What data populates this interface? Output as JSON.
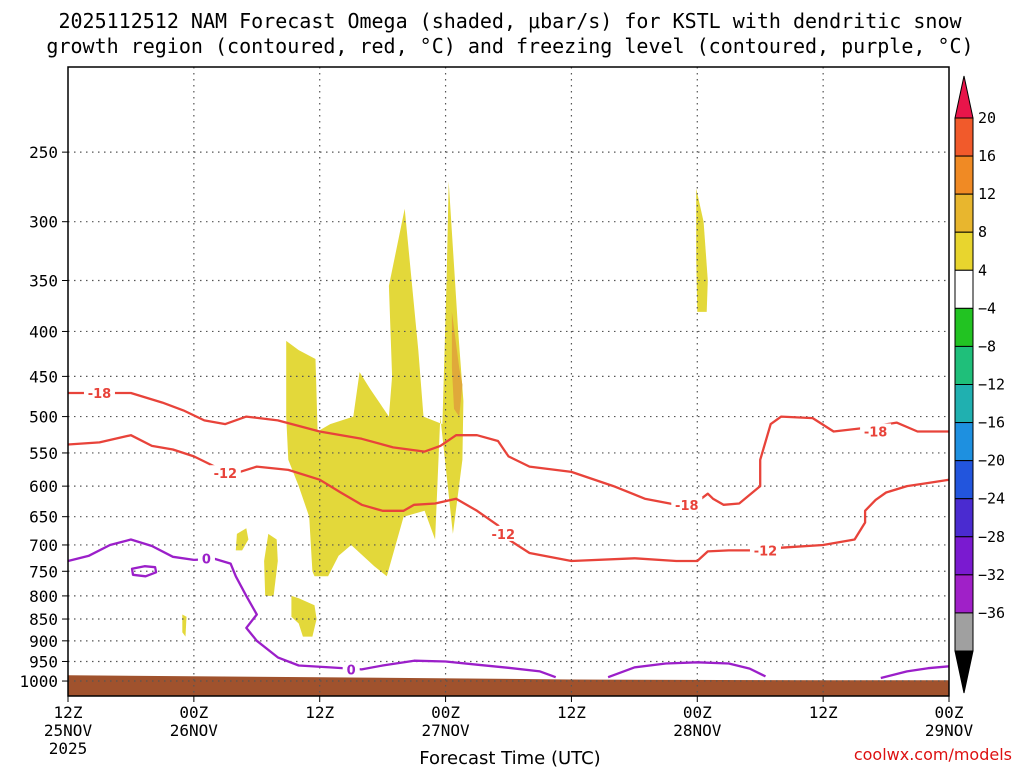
{
  "chart_data": {
    "type": "contour",
    "title_line1": "2025112512 NAM Forecast Omega (shaded, μbar/s) for KSTL with dendritic snow",
    "title_line2": "growth region (contoured, red, °C) and freezing level (contoured, purple, °C)",
    "xlabel": "Forecast Time (UTC)",
    "ylabel": "",
    "credit": "coolwx.com/models",
    "x_hours_range": [
      0,
      84
    ],
    "y_pressure_range": [
      1040,
      200
    ],
    "pressure_levels": [
      250,
      300,
      350,
      400,
      450,
      500,
      550,
      600,
      650,
      700,
      750,
      800,
      850,
      900,
      950,
      1000
    ],
    "x_ticks": [
      {
        "hour": 0,
        "time": "12Z",
        "date": "25NOV",
        "year": "2025"
      },
      {
        "hour": 12,
        "time": "00Z",
        "date": "26NOV",
        "year": ""
      },
      {
        "hour": 24,
        "time": "12Z",
        "date": "",
        "year": ""
      },
      {
        "hour": 36,
        "time": "00Z",
        "date": "27NOV",
        "year": ""
      },
      {
        "hour": 48,
        "time": "12Z",
        "date": "",
        "year": ""
      },
      {
        "hour": 60,
        "time": "00Z",
        "date": "28NOV",
        "year": ""
      },
      {
        "hour": 72,
        "time": "12Z",
        "date": "",
        "year": ""
      },
      {
        "hour": 84,
        "time": "00Z",
        "date": "29NOV",
        "year": ""
      }
    ],
    "colorbar": {
      "levels": [
        "20",
        "16",
        "12",
        "8",
        "4",
        "-4",
        "-8",
        "-12",
        "-16",
        "-20",
        "-24",
        "-28",
        "-32",
        "-36"
      ],
      "colors": [
        "#e8154a",
        "#f15a2b",
        "#f08a24",
        "#e8b62e",
        "#e8d52e",
        "#ffffff",
        "#22c322",
        "#1fbf7a",
        "#20b0b0",
        "#1e90e0",
        "#2255dd",
        "#4a2bd0",
        "#7a1ad0",
        "#a020c8",
        "#a0a0a0",
        "#000000"
      ]
    },
    "series": [
      {
        "name": "omega +4 to +8 (yellow)",
        "color": "#e3d83a",
        "polygons": [
          [
            [
              20.8,
              410
            ],
            [
              22.0,
              420
            ],
            [
              23.6,
              430
            ],
            [
              23.8,
              520
            ],
            [
              25.0,
              510
            ],
            [
              27.2,
              500
            ],
            [
              27.8,
              445
            ],
            [
              28.8,
              465
            ],
            [
              30.6,
              500
            ],
            [
              30.9,
              450
            ],
            [
              30.6,
              355
            ],
            [
              32.1,
              290
            ],
            [
              33.4,
              420
            ],
            [
              33.9,
              500
            ],
            [
              35.7,
              510
            ],
            [
              36.1,
              350
            ],
            [
              36.3,
              270
            ],
            [
              37.2,
              400
            ],
            [
              37.7,
              480
            ],
            [
              37.6,
              560
            ],
            [
              36.7,
              680
            ],
            [
              35.5,
              500
            ],
            [
              35.0,
              690
            ],
            [
              34.0,
              640
            ],
            [
              32.0,
              650
            ],
            [
              30.4,
              760
            ],
            [
              29.2,
              740
            ],
            [
              27.0,
              700
            ],
            [
              25.8,
              720
            ],
            [
              24.8,
              760
            ],
            [
              23.5,
              760
            ],
            [
              23.3,
              750
            ],
            [
              23.0,
              650
            ],
            [
              22.0,
              600
            ],
            [
              21.0,
              560
            ],
            [
              20.8,
              500
            ]
          ],
          [
            [
              59.9,
              275
            ],
            [
              60.6,
              300
            ],
            [
              61.0,
              350
            ],
            [
              60.9,
              380
            ],
            [
              60.0,
              380
            ],
            [
              59.9,
              330
            ]
          ],
          [
            [
              21.3,
              800
            ],
            [
              22.0,
              805
            ],
            [
              23.5,
              820
            ],
            [
              23.7,
              850
            ],
            [
              23.3,
              890
            ],
            [
              22.4,
              890
            ],
            [
              22.0,
              860
            ],
            [
              21.3,
              845
            ]
          ],
          [
            [
              19.1,
              680
            ],
            [
              19.9,
              690
            ],
            [
              20.0,
              730
            ],
            [
              19.6,
              800
            ],
            [
              18.8,
              800
            ],
            [
              18.7,
              730
            ]
          ],
          [
            [
              16.1,
              680
            ],
            [
              17.0,
              670
            ],
            [
              17.2,
              690
            ],
            [
              16.6,
              710
            ],
            [
              16.0,
              710
            ]
          ],
          [
            [
              10.9,
              840
            ],
            [
              11.3,
              845
            ],
            [
              11.2,
              890
            ],
            [
              10.9,
              880
            ]
          ]
        ]
      },
      {
        "name": "omega +8 to +12 (orange)",
        "color": "#e0a93a",
        "polygons": [
          [
            [
              36.6,
              380
            ],
            [
              37.3,
              440
            ],
            [
              37.6,
              460
            ],
            [
              37.3,
              500
            ],
            [
              36.8,
              490
            ],
            [
              36.6,
              440
            ]
          ]
        ]
      },
      {
        "name": "terrain (below ground)",
        "color": "#a0522d",
        "polygons": [
          [
            [
              0,
              985
            ],
            [
              24,
              990
            ],
            [
              48,
              996
            ],
            [
              72,
              998
            ],
            [
              84,
              998
            ],
            [
              84,
              1040
            ],
            [
              0,
              1040
            ]
          ]
        ]
      },
      {
        "name": "-18 °C isotherm (red)",
        "color": "#e8433a",
        "label": "-18",
        "label_points": [
          [
            3.0,
            470
          ],
          [
            59.0,
            630
          ],
          [
            77.0,
            520
          ]
        ],
        "points": [
          [
            0,
            470
          ],
          [
            3,
            470
          ],
          [
            6,
            470
          ],
          [
            9,
            482
          ],
          [
            11,
            492
          ],
          [
            13,
            505
          ],
          [
            15,
            510
          ],
          [
            17,
            500
          ],
          [
            20,
            505
          ],
          [
            24,
            520
          ],
          [
            28,
            530
          ],
          [
            31,
            542
          ],
          [
            34,
            548
          ],
          [
            35.5,
            540
          ],
          [
            37,
            525
          ],
          [
            39,
            525
          ],
          [
            41,
            533
          ],
          [
            42,
            555
          ],
          [
            44,
            570
          ],
          [
            48,
            578
          ],
          [
            52,
            600
          ],
          [
            55,
            620
          ],
          [
            58,
            630
          ],
          [
            60,
            625
          ],
          [
            61,
            612
          ],
          [
            61.5,
            620
          ],
          [
            62.5,
            630
          ],
          [
            64,
            628
          ],
          [
            66,
            600
          ],
          [
            66,
            560
          ],
          [
            67,
            510
          ],
          [
            68,
            500
          ],
          [
            71,
            502
          ],
          [
            73,
            520
          ],
          [
            76,
            515
          ],
          [
            79,
            508
          ],
          [
            81,
            520
          ],
          [
            84,
            520
          ]
        ]
      },
      {
        "name": "-12 °C isotherm (red)",
        "color": "#e8433a",
        "label": "-12",
        "label_points": [
          [
            15.0,
            580
          ],
          [
            41.5,
            680
          ],
          [
            66.5,
            710
          ]
        ],
        "points": [
          [
            0,
            538
          ],
          [
            3,
            535
          ],
          [
            6,
            525
          ],
          [
            8,
            540
          ],
          [
            10,
            545
          ],
          [
            12,
            555
          ],
          [
            14,
            570
          ],
          [
            16,
            580
          ],
          [
            18,
            570
          ],
          [
            21,
            575
          ],
          [
            24,
            590
          ],
          [
            26,
            610
          ],
          [
            28,
            630
          ],
          [
            30,
            640
          ],
          [
            32,
            640
          ],
          [
            33,
            630
          ],
          [
            35,
            628
          ],
          [
            37,
            620
          ],
          [
            39,
            640
          ],
          [
            41,
            665
          ],
          [
            42,
            690
          ],
          [
            44,
            715
          ],
          [
            48,
            730
          ],
          [
            54,
            725
          ],
          [
            58,
            730
          ],
          [
            60,
            730
          ],
          [
            61,
            712
          ],
          [
            63,
            710
          ],
          [
            66,
            710
          ],
          [
            68,
            705
          ],
          [
            72,
            700
          ],
          [
            75,
            690
          ],
          [
            76,
            660
          ],
          [
            76,
            640
          ],
          [
            77,
            622
          ],
          [
            78,
            610
          ],
          [
            80,
            600
          ],
          [
            82,
            595
          ],
          [
            84,
            590
          ]
        ]
      },
      {
        "name": "0 °C freezing level (purple)",
        "color": "#9b1fc9",
        "label": "0",
        "label_points": [
          [
            13.2,
            725
          ],
          [
            27.0,
            970
          ]
        ],
        "points": [
          [
            0,
            730
          ],
          [
            2,
            720
          ],
          [
            4,
            700
          ],
          [
            6,
            690
          ],
          [
            8,
            702
          ],
          [
            10,
            722
          ],
          [
            12,
            728
          ],
          [
            14,
            726
          ],
          [
            15.5,
            735
          ],
          [
            16,
            760
          ],
          [
            17,
            800
          ],
          [
            18,
            840
          ],
          [
            17,
            870
          ],
          [
            18,
            900
          ],
          [
            20,
            940
          ],
          [
            22,
            960
          ],
          [
            25,
            965
          ],
          [
            28,
            970
          ],
          [
            30,
            960
          ],
          [
            33,
            948
          ],
          [
            36,
            950
          ],
          [
            39,
            958
          ],
          [
            42,
            966
          ],
          [
            45,
            975
          ],
          [
            46.5,
            990
          ]
        ]
      },
      {
        "name": "0 °C loop small (purple)",
        "color": "#9b1fc9",
        "closed": true,
        "points": [
          [
            6.1,
            745
          ],
          [
            7.3,
            740
          ],
          [
            8.3,
            742
          ],
          [
            8.4,
            752
          ],
          [
            7.4,
            760
          ],
          [
            6.2,
            757
          ]
        ]
      },
      {
        "name": "0 °C arc late-period (purple)",
        "color": "#9b1fc9",
        "points": [
          [
            51.5,
            990
          ],
          [
            54,
            965
          ],
          [
            57,
            955
          ],
          [
            60,
            952
          ],
          [
            63,
            955
          ],
          [
            65,
            968
          ],
          [
            66.5,
            988
          ]
        ]
      },
      {
        "name": "0 °C arc right edge (purple)",
        "color": "#9b1fc9",
        "points": [
          [
            77.5,
            992
          ],
          [
            80,
            975
          ],
          [
            82,
            967
          ],
          [
            84,
            962
          ]
        ]
      }
    ]
  }
}
